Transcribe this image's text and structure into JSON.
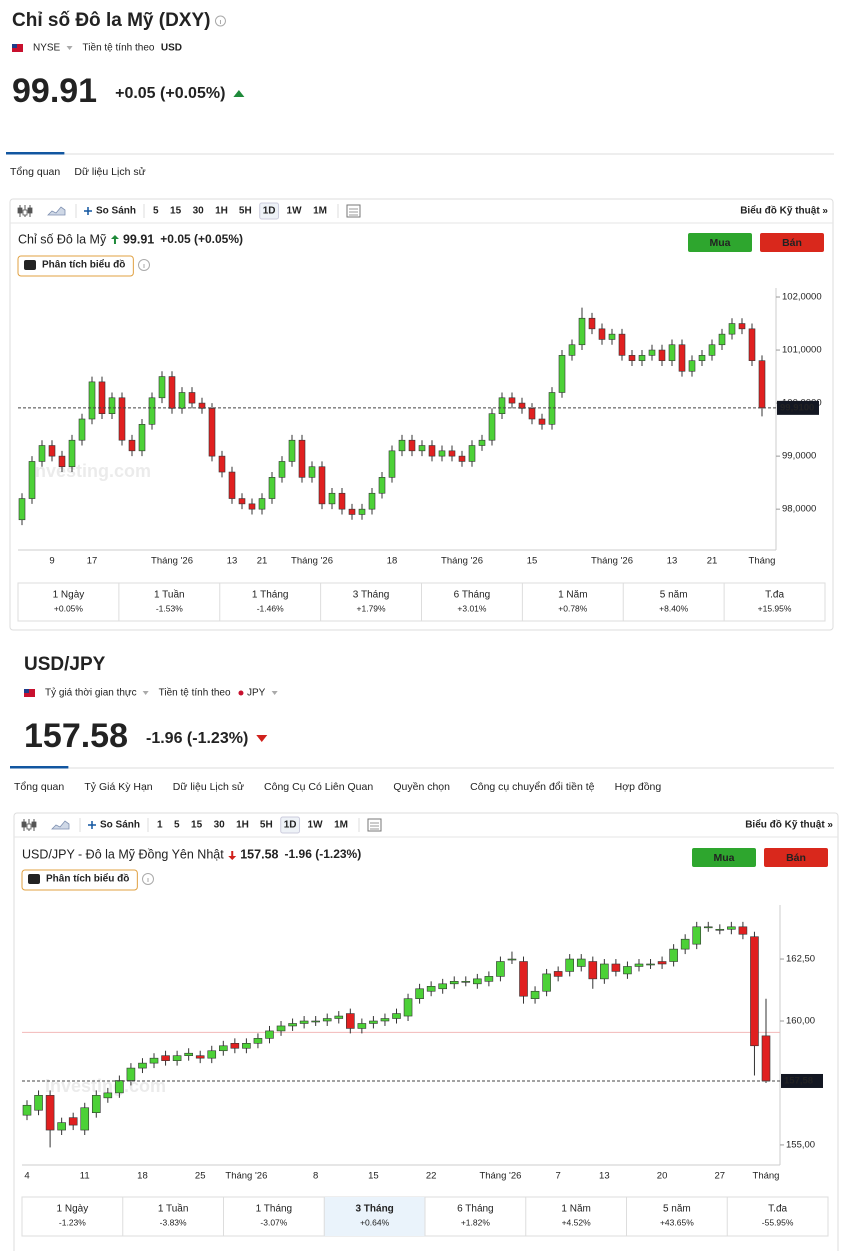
{
  "sections": [
    {
      "title": "Chỉ số Đô la Mỹ (DXY)",
      "market": "NYSE",
      "currency_caption": "Tiền tệ tính theo",
      "currency": "USD",
      "price": "99.91",
      "change": "+0.05 (+0.05%)",
      "tabs": [
        "Tổng quan",
        "Dữ liệu Lịch sử"
      ],
      "toolbar": {
        "compare": "So Sánh",
        "intervals": [
          "5",
          "15",
          "30",
          "1H",
          "5H",
          "1D",
          "1W",
          "1M"
        ],
        "active_interval_index": 5,
        "technical": "Biểu đồ Kỹ thuật »"
      },
      "quote_name": "Chỉ số Đô la Mỹ",
      "quote_price": "99.91",
      "quote_change": "+0.05 (+0.05%)",
      "buy": "Mua",
      "sell": "Bán",
      "analysis_icon": "AI",
      "analysis": "Phân tích biểu đồ",
      "performance": [
        {
          "label": "1 Ngày",
          "value": "+0.05%"
        },
        {
          "label": "1 Tuần",
          "value": "-1.53%"
        },
        {
          "label": "1 Tháng",
          "value": "-1.46%"
        },
        {
          "label": "3 Tháng",
          "value": "+1.79%"
        },
        {
          "label": "6 Tháng",
          "value": "+3.01%"
        },
        {
          "label": "1 Năm",
          "value": "+0.78%"
        },
        {
          "label": "5 năm",
          "value": "+8.40%"
        },
        {
          "label": "T.đa",
          "value": "+15.95%"
        }
      ],
      "chart": {
        "type": "candlestick",
        "watermark": "Investing.com",
        "up_color": "#4cd137",
        "down_color": "#e02020",
        "categories": [
          null,
          null,
          null,
          "9",
          null,
          null,
          null,
          "17",
          null,
          null,
          null,
          null,
          null,
          null,
          null,
          "Tháng '26",
          null,
          null,
          null,
          null,
          null,
          "13",
          null,
          null,
          "21",
          null,
          null,
          null,
          null,
          "Tháng '26",
          null,
          null,
          null,
          null,
          null,
          null,
          null,
          "18",
          null,
          null,
          null,
          null,
          null,
          null,
          "Tháng '26",
          null,
          null,
          null,
          null,
          null,
          null,
          "15",
          null,
          null,
          null,
          null,
          null,
          null,
          null,
          "Tháng '26",
          null,
          null,
          null,
          null,
          null,
          "13",
          null,
          null,
          null,
          "21",
          null,
          null,
          null,
          null,
          "Tháng"
        ],
        "open": [
          97.8,
          98.2,
          98.9,
          99.2,
          99.0,
          98.8,
          99.3,
          99.7,
          100.4,
          99.8,
          100.1,
          99.3,
          99.1,
          99.6,
          100.1,
          100.5,
          99.9,
          100.2,
          100.0,
          99.9,
          99.0,
          98.7,
          98.2,
          98.1,
          98.0,
          98.2,
          98.6,
          98.9,
          99.3,
          98.6,
          98.8,
          98.1,
          98.3,
          98.0,
          97.9,
          98.0,
          98.3,
          98.6,
          99.1,
          99.3,
          99.1,
          99.2,
          99.0,
          99.1,
          99.0,
          98.9,
          99.2,
          99.3,
          99.8,
          100.1,
          100.0,
          99.9,
          99.7,
          99.6,
          100.2,
          100.9,
          101.1,
          101.6,
          101.4,
          101.2,
          101.3,
          100.9,
          100.8,
          100.9,
          101.0,
          100.8,
          101.1,
          100.6,
          100.8,
          100.9,
          101.1,
          101.3,
          101.5,
          101.4,
          100.8
        ],
        "high": [
          98.3,
          99.0,
          99.3,
          99.3,
          99.1,
          99.4,
          99.8,
          100.5,
          100.5,
          100.2,
          100.2,
          99.4,
          99.7,
          100.2,
          100.6,
          100.6,
          100.3,
          100.3,
          100.1,
          100.0,
          99.1,
          98.8,
          98.3,
          98.2,
          98.3,
          98.7,
          99.0,
          99.4,
          99.4,
          98.9,
          98.9,
          98.4,
          98.4,
          98.1,
          98.1,
          98.4,
          98.7,
          99.2,
          99.4,
          99.4,
          99.3,
          99.3,
          99.2,
          99.2,
          99.1,
          99.3,
          99.4,
          99.9,
          100.2,
          100.2,
          100.1,
          100.0,
          99.8,
          100.3,
          101.0,
          101.2,
          101.8,
          101.7,
          101.5,
          101.4,
          101.4,
          101.0,
          101.0,
          101.1,
          101.1,
          101.2,
          101.2,
          100.9,
          101.0,
          101.2,
          101.4,
          101.6,
          101.6,
          101.5,
          100.9
        ],
        "low": [
          97.7,
          98.1,
          98.8,
          98.9,
          98.7,
          98.7,
          99.2,
          99.6,
          99.7,
          99.7,
          99.2,
          99.0,
          99.0,
          99.5,
          100.0,
          99.8,
          99.8,
          99.9,
          99.8,
          98.9,
          98.6,
          98.1,
          98.0,
          97.9,
          97.9,
          98.1,
          98.5,
          98.8,
          98.5,
          98.5,
          98.0,
          98.0,
          97.9,
          97.8,
          97.8,
          97.9,
          98.2,
          98.5,
          99.0,
          99.0,
          99.0,
          98.9,
          98.9,
          98.9,
          98.8,
          98.8,
          99.1,
          99.2,
          99.7,
          99.9,
          99.8,
          99.6,
          99.5,
          99.5,
          100.1,
          100.8,
          101.0,
          101.3,
          101.1,
          101.1,
          100.8,
          100.7,
          100.7,
          100.8,
          100.7,
          100.7,
          100.5,
          100.5,
          100.7,
          100.8,
          101.0,
          101.2,
          101.3,
          100.7,
          99.75
        ],
        "close": [
          98.2,
          98.9,
          99.2,
          99.0,
          98.8,
          99.3,
          99.7,
          100.4,
          99.8,
          100.1,
          99.3,
          99.1,
          99.6,
          100.1,
          100.5,
          99.9,
          100.2,
          100.0,
          99.9,
          99.0,
          98.7,
          98.2,
          98.1,
          98.0,
          98.2,
          98.6,
          98.9,
          99.3,
          98.6,
          98.8,
          98.1,
          98.3,
          98.0,
          97.9,
          98.0,
          98.3,
          98.6,
          99.1,
          99.3,
          99.1,
          99.2,
          99.0,
          99.1,
          99.0,
          98.9,
          99.2,
          99.3,
          99.8,
          100.1,
          100.0,
          99.9,
          99.7,
          99.6,
          100.2,
          100.9,
          101.1,
          101.6,
          101.4,
          101.2,
          101.3,
          100.9,
          100.8,
          100.9,
          101.0,
          100.8,
          101.1,
          100.6,
          100.8,
          100.9,
          101.1,
          101.3,
          101.5,
          101.4,
          100.8,
          99.91
        ],
        "ylim": [
          97.23,
          102.17
        ],
        "yticks": [
          {
            "value": 98,
            "label": "98,0000"
          },
          {
            "value": 99,
            "label": "99,0000"
          },
          {
            "value": 100,
            "label": "100,0000"
          },
          {
            "value": 101,
            "label": "101,0000"
          },
          {
            "value": 102,
            "label": "102,0000"
          }
        ],
        "last": {
          "value": 99.91,
          "label": "99,9100"
        }
      }
    },
    {
      "title": "USD/JPY",
      "market": "Tỷ giá thời gian thực",
      "currency_caption": "Tiền tệ tính theo",
      "currency": "JPY",
      "price": "157.58",
      "change": "-1.96 (-1.23%)",
      "tabs": [
        "Tổng quan",
        "Tỷ Giá Kỳ Hạn",
        "Dữ liệu Lịch sử",
        "Công Cụ Có Liên Quan",
        "Quyền chọn",
        "Công cụ chuyển đổi tiền tệ",
        "Hợp đồng"
      ],
      "toolbar": {
        "compare": "So Sánh",
        "intervals": [
          "1",
          "5",
          "15",
          "30",
          "1H",
          "5H",
          "1D",
          "1W",
          "1M"
        ],
        "active_interval_index": 6,
        "technical": "Biểu đồ Kỹ thuật »"
      },
      "quote_name": "USD/JPY - Đô la Mỹ Đồng Yên Nhật",
      "quote_price": "157.58",
      "quote_change": "-1.96 (-1.23%)",
      "buy": "Mua",
      "sell": "Bán",
      "analysis_icon": "AI",
      "analysis": "Phân tích biểu đồ",
      "performance": [
        {
          "label": "1 Ngày",
          "value": "-1.23%"
        },
        {
          "label": "1 Tuần",
          "value": "-3.83%"
        },
        {
          "label": "1 Tháng",
          "value": "-3.07%"
        },
        {
          "label": "3 Tháng",
          "value": "+0.64%"
        },
        {
          "label": "6 Tháng",
          "value": "+1.82%"
        },
        {
          "label": "1 Năm",
          "value": "+4.52%"
        },
        {
          "label": "5 năm",
          "value": "+43.65%"
        },
        {
          "label": "T.đa",
          "value": "-55.95%"
        }
      ],
      "active_period_index": 3,
      "chart": {
        "type": "candlestick",
        "watermark": "Investing.com",
        "up_color": "#4cd137",
        "down_color": "#e02020",
        "categories": [
          "4",
          null,
          null,
          null,
          null,
          "11",
          null,
          null,
          null,
          null,
          "18",
          null,
          null,
          null,
          null,
          "25",
          null,
          null,
          null,
          "Tháng '26",
          null,
          null,
          null,
          null,
          null,
          "8",
          null,
          null,
          null,
          null,
          "15",
          null,
          null,
          null,
          null,
          "22",
          null,
          null,
          null,
          null,
          null,
          "Tháng '26",
          null,
          null,
          null,
          null,
          "7",
          null,
          null,
          null,
          "13",
          null,
          null,
          null,
          null,
          "20",
          null,
          null,
          null,
          null,
          "27",
          null,
          null,
          null,
          "Tháng"
        ],
        "open": [
          156.2,
          156.4,
          157.0,
          155.6,
          156.1,
          155.6,
          156.3,
          156.9,
          157.1,
          157.6,
          158.1,
          158.3,
          158.6,
          158.4,
          158.6,
          158.6,
          158.5,
          158.8,
          159.1,
          158.9,
          159.1,
          159.3,
          159.6,
          159.8,
          159.9,
          160.0,
          160.0,
          160.1,
          160.3,
          159.7,
          159.9,
          160.0,
          160.1,
          160.2,
          160.9,
          161.2,
          161.3,
          161.5,
          161.6,
          161.5,
          161.6,
          161.8,
          162.5,
          162.4,
          160.9,
          161.2,
          162.0,
          162.0,
          162.2,
          162.4,
          161.7,
          162.3,
          161.9,
          162.2,
          162.3,
          162.4,
          162.4,
          162.9,
          163.1,
          163.8,
          163.7,
          163.7,
          163.8,
          163.4,
          159.4
        ],
        "high": [
          156.8,
          157.2,
          157.2,
          156.1,
          156.3,
          156.7,
          157.2,
          157.3,
          157.8,
          158.3,
          158.5,
          158.7,
          158.8,
          158.8,
          158.9,
          158.8,
          159.0,
          159.2,
          159.3,
          159.3,
          159.5,
          159.8,
          160.0,
          160.1,
          160.2,
          160.2,
          160.3,
          160.4,
          160.5,
          160.1,
          160.2,
          160.3,
          160.5,
          161.1,
          161.5,
          161.6,
          161.7,
          161.8,
          161.8,
          161.9,
          162.0,
          162.6,
          162.8,
          162.6,
          161.4,
          162.1,
          162.2,
          162.7,
          162.7,
          162.6,
          162.5,
          162.5,
          162.4,
          162.5,
          162.5,
          162.6,
          163.1,
          163.5,
          164.0,
          164.0,
          163.9,
          164.0,
          164.0,
          163.6,
          160.9
        ],
        "low": [
          156.0,
          156.2,
          154.9,
          155.4,
          155.6,
          155.4,
          156.1,
          156.7,
          156.9,
          157.4,
          157.9,
          158.1,
          158.2,
          158.2,
          158.4,
          158.3,
          158.3,
          158.6,
          158.7,
          158.7,
          158.9,
          159.1,
          159.4,
          159.6,
          159.7,
          159.8,
          159.8,
          159.9,
          159.5,
          159.5,
          159.7,
          159.8,
          159.9,
          160.0,
          160.7,
          161.0,
          161.1,
          161.3,
          161.4,
          161.3,
          161.4,
          161.6,
          162.3,
          160.7,
          160.7,
          161.0,
          161.6,
          161.8,
          162.0,
          161.3,
          161.5,
          161.8,
          161.7,
          162.0,
          162.1,
          162.1,
          162.2,
          162.7,
          162.9,
          163.6,
          163.5,
          163.5,
          163.3,
          157.8,
          157.5
        ],
        "close": [
          156.6,
          157.0,
          155.6,
          155.9,
          155.8,
          156.5,
          157.0,
          157.1,
          157.6,
          158.1,
          158.3,
          158.5,
          158.4,
          158.6,
          158.7,
          158.5,
          158.8,
          159.0,
          158.9,
          159.1,
          159.3,
          159.6,
          159.8,
          159.9,
          160.0,
          160.0,
          160.1,
          160.2,
          159.7,
          159.9,
          160.0,
          160.1,
          160.3,
          160.9,
          161.3,
          161.4,
          161.5,
          161.6,
          161.6,
          161.7,
          161.8,
          162.4,
          162.5,
          161.0,
          161.2,
          161.9,
          161.8,
          162.5,
          162.5,
          161.7,
          162.3,
          162.0,
          162.2,
          162.3,
          162.3,
          162.3,
          162.9,
          163.3,
          163.8,
          163.8,
          163.7,
          163.8,
          163.5,
          159.0,
          157.58
        ],
        "ylim": [
          154.19,
          164.68
        ],
        "yticks": [
          {
            "value": 155,
            "label": "155,00"
          },
          {
            "value": 160,
            "label": "160,00"
          },
          {
            "value": 162.5,
            "label": "162,50"
          }
        ],
        "previous_close": 159.54,
        "last": {
          "value": 157.58,
          "label": "157,58"
        }
      }
    }
  ]
}
